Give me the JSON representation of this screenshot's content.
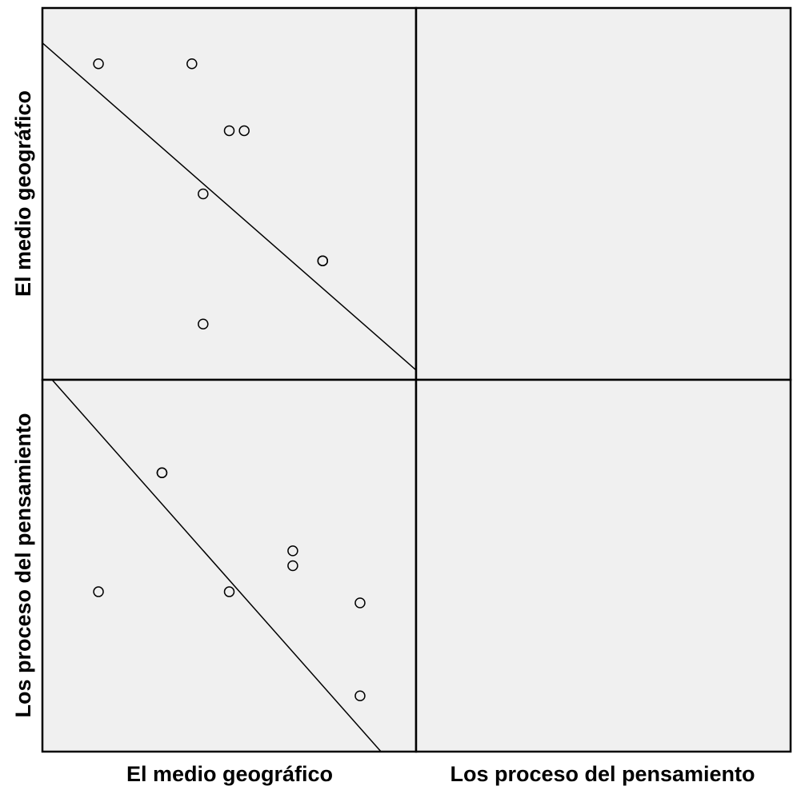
{
  "chart_data": {
    "type": "scatter",
    "subtype": "scatterplot-matrix",
    "variables": [
      "El medio geográfico",
      "Los proceso del pensamiento"
    ],
    "column_labels": [
      "El medio geográfico",
      "Los proceso del pensamiento"
    ],
    "row_labels": [
      "El medio geográfico",
      "Los proceso del pensamiento"
    ],
    "axis_range": [
      0,
      1
    ],
    "fit_line": true,
    "grid": false,
    "points": [
      {
        "x": 0.15,
        "y": 0.85
      },
      {
        "x": 0.43,
        "y": 0.15
      },
      {
        "x": 0.43,
        "y": 0.5
      },
      {
        "x": 0.4,
        "y": 0.85
      },
      {
        "x": 0.54,
        "y": 0.67
      },
      {
        "x": 0.5,
        "y": 0.67
      },
      {
        "x": 0.75,
        "y": 0.32
      },
      {
        "x": 0.75,
        "y": 0.32
      }
    ],
    "fit": {
      "intercept": 0.906,
      "slope": -0.88
    }
  }
}
